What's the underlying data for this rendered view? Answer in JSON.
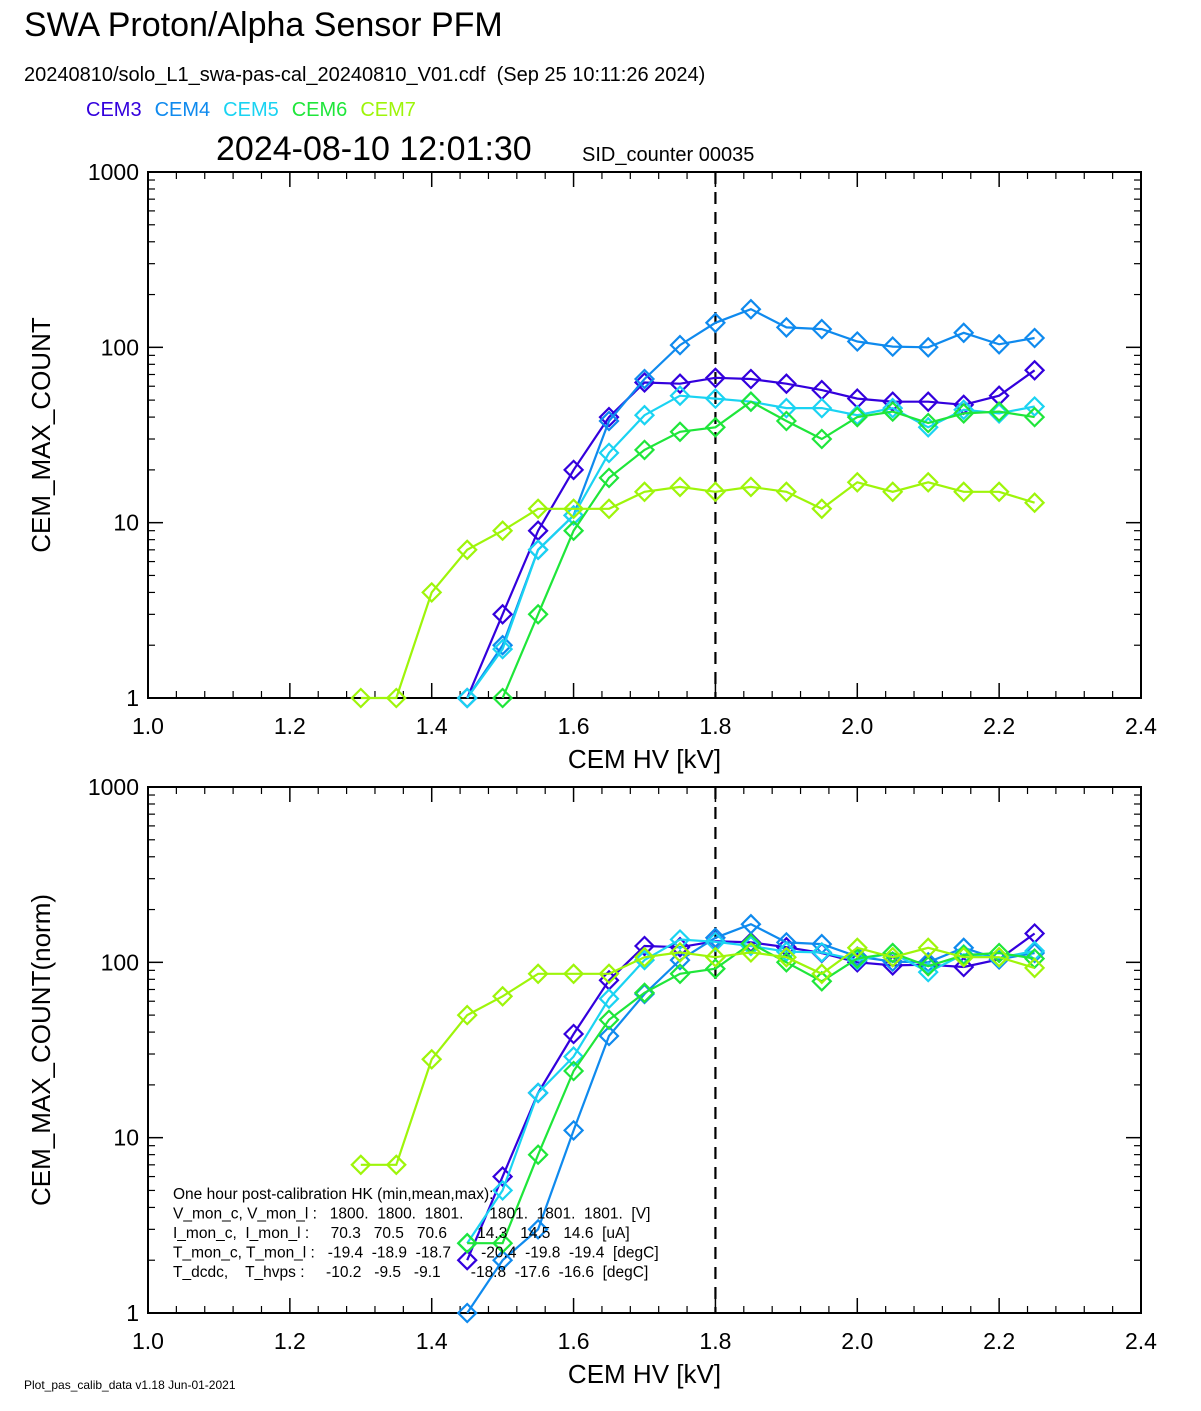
{
  "header": {
    "title": "SWA Proton/Alpha Sensor PFM",
    "subtitle": "20240810/solo_L1_swa-pas-cal_20240810_V01.cdf  (Sep 25 10:11:26 2024)",
    "timestamp": "2024-08-10 12:01:30",
    "sid_counter": "SID_counter 00035"
  },
  "legend": [
    {
      "name": "CEM3",
      "color": "#3300dd"
    },
    {
      "name": "CEM4",
      "color": "#0f8aee"
    },
    {
      "name": "CEM5",
      "color": "#1ad3f2"
    },
    {
      "name": "CEM6",
      "color": "#1fe63a"
    },
    {
      "name": "CEM7",
      "color": "#9ef50a"
    }
  ],
  "footer": "Plot_pas_calib_data v1.18 Jun-01-2021",
  "hk_text": [
    "One hour post-calibration HK (min,mean,max):",
    "V_mon_c, V_mon_l :   1800.  1800.  1801.      1801.  1801.  1801.  [V]",
    "I_mon_c,  I_mon_l :     70.3   70.5   70.6       14.3   14.5   14.6  [uA]",
    "T_mon_c, T_mon_l :   -19.4  -18.9  -18.7       -20.4  -19.8  -19.4  [degC]",
    "T_dcdc,    T_hvps :     -10.2   -9.5   -9.1       -18.8  -17.6  -16.6  [degC]"
  ],
  "chart_data": [
    {
      "type": "line",
      "xlabel": "CEM HV [kV]",
      "ylabel": "CEM_MAX_COUNT",
      "xlim": [
        1.0,
        2.4
      ],
      "ylim": [
        1,
        1000
      ],
      "yscale": "log",
      "xticks": [
        "1.0",
        "1.2",
        "1.4",
        "1.6",
        "1.8",
        "2.0",
        "2.2",
        "2.4"
      ],
      "yticks": [
        "1",
        "10",
        "100",
        "1000"
      ],
      "vline_x": 1.8,
      "vline_style": "dashed",
      "series": [
        {
          "name": "CEM3",
          "color": "#3300dd",
          "x": [
            1.45,
            1.5,
            1.55,
            1.6,
            1.65,
            1.7,
            1.75,
            1.8,
            1.85,
            1.9,
            1.95,
            2.0,
            2.05,
            2.1,
            2.15,
            2.2,
            2.25
          ],
          "y": [
            1,
            3,
            9,
            20,
            40,
            63,
            62,
            67,
            66,
            62,
            57,
            51,
            49,
            49,
            47,
            53,
            74
          ]
        },
        {
          "name": "CEM4",
          "color": "#0f8aee",
          "x": [
            1.45,
            1.5,
            1.55,
            1.6,
            1.65,
            1.7,
            1.75,
            1.8,
            1.85,
            1.9,
            1.95,
            2.0,
            2.05,
            2.1,
            2.15,
            2.2,
            2.25
          ],
          "y": [
            1,
            2,
            7,
            11,
            38,
            66,
            103,
            138,
            165,
            130,
            127,
            108,
            101,
            100,
            121,
            104,
            113
          ]
        },
        {
          "name": "CEM5",
          "color": "#1ad3f2",
          "x": [
            1.45,
            1.5,
            1.55,
            1.6,
            1.65,
            1.7,
            1.75,
            1.8,
            1.85,
            1.9,
            1.95,
            2.0,
            2.05,
            2.1,
            2.15,
            2.2,
            2.25
          ],
          "y": [
            1,
            1.9,
            7,
            11,
            25,
            41,
            53,
            51,
            49,
            45,
            45,
            41,
            45,
            35,
            44,
            42,
            46
          ]
        },
        {
          "name": "CEM6",
          "color": "#1fe63a",
          "x": [
            1.5,
            1.55,
            1.6,
            1.65,
            1.7,
            1.75,
            1.8,
            1.85,
            1.9,
            1.95,
            2.0,
            2.05,
            2.1,
            2.15,
            2.2,
            2.25
          ],
          "y": [
            1,
            3,
            9,
            18,
            26,
            33,
            35,
            49,
            38,
            30,
            40,
            43,
            37,
            42,
            43,
            40
          ]
        },
        {
          "name": "CEM7",
          "color": "#9ef50a",
          "x": [
            1.3,
            1.35,
            1.4,
            1.45,
            1.5,
            1.55,
            1.6,
            1.65,
            1.7,
            1.75,
            1.8,
            1.85,
            1.9,
            1.95,
            2.0,
            2.05,
            2.1,
            2.15,
            2.2,
            2.25
          ],
          "y": [
            1,
            1,
            4,
            7,
            9,
            12,
            12,
            12,
            15,
            16,
            15,
            16,
            15,
            12,
            17,
            15,
            17,
            15,
            15,
            13
          ]
        }
      ]
    },
    {
      "type": "line",
      "xlabel": "CEM HV [kV]",
      "ylabel": "CEM_MAX_COUNT(norm)",
      "xlim": [
        1.0,
        2.4
      ],
      "ylim": [
        1,
        1000
      ],
      "yscale": "log",
      "xticks": [
        "1.0",
        "1.2",
        "1.4",
        "1.6",
        "1.8",
        "2.0",
        "2.2",
        "2.4"
      ],
      "yticks": [
        "1",
        "10",
        "100",
        "1000"
      ],
      "vline_x": 1.8,
      "vline_style": "dashed",
      "series": [
        {
          "name": "CEM3",
          "color": "#3300dd",
          "x": [
            1.45,
            1.5,
            1.55,
            1.6,
            1.65,
            1.7,
            1.75,
            1.8,
            1.85,
            1.9,
            1.95,
            2.0,
            2.05,
            2.1,
            2.15,
            2.2,
            2.25
          ],
          "y": [
            2,
            6,
            18,
            39,
            79,
            124,
            122,
            132,
            130,
            122,
            113,
            100,
            96,
            97,
            94,
            104,
            146
          ]
        },
        {
          "name": "CEM4",
          "color": "#0f8aee",
          "x": [
            1.45,
            1.5,
            1.55,
            1.6,
            1.65,
            1.7,
            1.75,
            1.8,
            1.85,
            1.9,
            1.95,
            2.0,
            2.05,
            2.1,
            2.15,
            2.2,
            2.25
          ],
          "y": [
            1,
            2,
            3,
            11,
            38,
            66,
            103,
            138,
            165,
            130,
            127,
            108,
            101,
            100,
            121,
            104,
            113
          ]
        },
        {
          "name": "CEM5",
          "color": "#1ad3f2",
          "x": [
            1.45,
            1.5,
            1.55,
            1.6,
            1.65,
            1.7,
            1.75,
            1.8,
            1.85,
            1.9,
            1.95,
            2.0,
            2.05,
            2.1,
            2.15,
            2.2,
            2.25
          ],
          "y": [
            2.5,
            5,
            18,
            29,
            62,
            103,
            135,
            131,
            124,
            115,
            114,
            103,
            113,
            88,
            111,
            106,
            116
          ]
        },
        {
          "name": "CEM6",
          "color": "#1fe63a",
          "x": [
            1.45,
            1.5,
            1.55,
            1.6,
            1.65,
            1.7,
            1.75,
            1.8,
            1.85,
            1.9,
            1.95,
            2.0,
            2.05,
            2.1,
            2.15,
            2.2,
            2.25
          ],
          "y": [
            2.5,
            2.5,
            8,
            24,
            47,
            67,
            86,
            92,
            128,
            100,
            78,
            105,
            113,
            95,
            110,
            113,
            105
          ]
        },
        {
          "name": "CEM7",
          "color": "#9ef50a",
          "x": [
            1.3,
            1.35,
            1.4,
            1.45,
            1.5,
            1.55,
            1.6,
            1.65,
            1.7,
            1.75,
            1.8,
            1.85,
            1.9,
            1.95,
            2.0,
            2.05,
            2.1,
            2.15,
            2.2,
            2.25
          ],
          "y": [
            7,
            7,
            28,
            50,
            64,
            86,
            86,
            86,
            107,
            114,
            107,
            114,
            107,
            86,
            121,
            107,
            121,
            107,
            107,
            93
          ]
        }
      ]
    }
  ]
}
